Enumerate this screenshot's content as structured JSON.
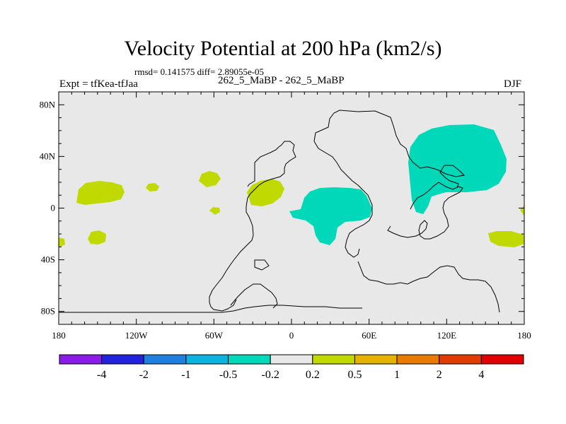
{
  "title": "Velocity Potential at 200 hPa (km2/s)",
  "stats": "rmsd= 0.141575 diff= 2.89055e-05",
  "expt": "Expt = tfKea-tfJaa",
  "case": "262_5_MaBP - 262_5_MaBP",
  "season": "DJF",
  "map": {
    "lon_range": [
      -180,
      180
    ],
    "lat_range": [
      -90,
      90
    ],
    "background_color": "#e8e8e8",
    "y_ticks": [
      {
        "value": 80,
        "label": "80N"
      },
      {
        "value": 40,
        "label": "40N"
      },
      {
        "value": 0,
        "label": "0"
      },
      {
        "value": -40,
        "label": "40S"
      },
      {
        "value": -80,
        "label": "80S"
      }
    ],
    "x_ticks": [
      {
        "value": -180,
        "label": "180"
      },
      {
        "value": -120,
        "label": "120W"
      },
      {
        "value": -60,
        "label": "60W"
      },
      {
        "value": 0,
        "label": "0"
      },
      {
        "value": 60,
        "label": "60E"
      },
      {
        "value": 120,
        "label": "120E"
      },
      {
        "value": 180,
        "label": "180"
      }
    ],
    "positive_color": "#c0d900",
    "negative_color": "#00d9b9"
  },
  "colorbar": {
    "colors": [
      "#8a1be8",
      "#2222dd",
      "#1e7fe0",
      "#0cb2e0",
      "#00d9b9",
      "#e8e8e8",
      "#c0d900",
      "#e6b100",
      "#e97a00",
      "#e23b00",
      "#e30000"
    ],
    "labels": [
      "-4",
      "-2",
      "-1",
      "-0.5",
      "-0.2",
      "0.2",
      "0.5",
      "1",
      "2",
      "4"
    ]
  }
}
